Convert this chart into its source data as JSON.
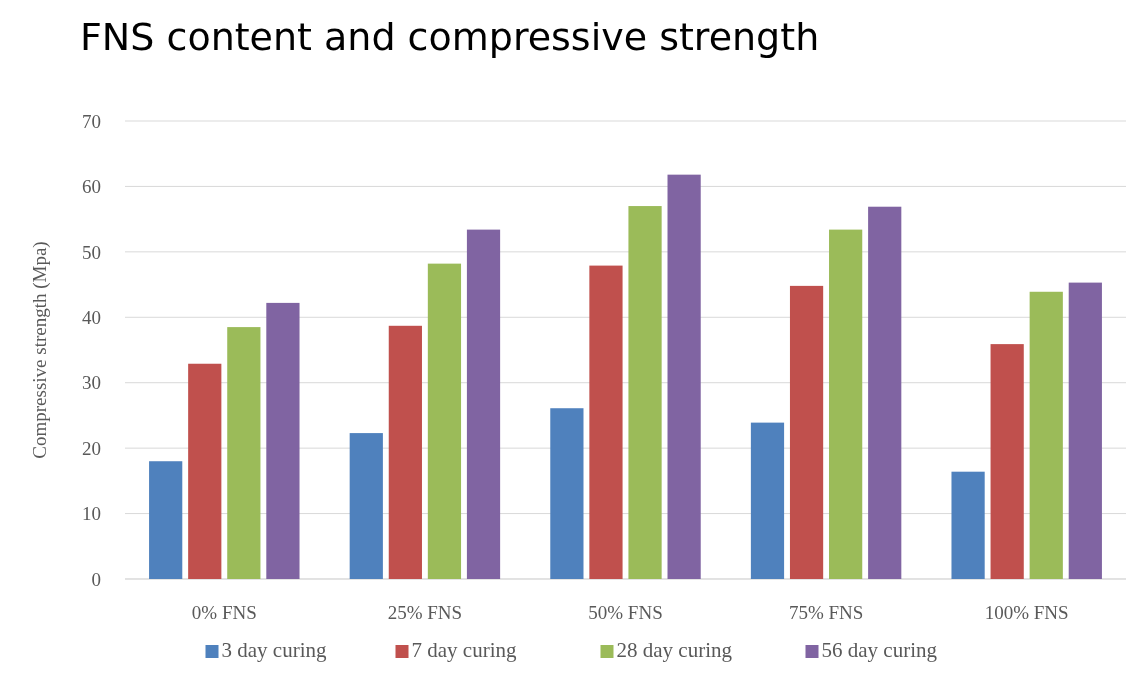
{
  "chart_data": {
    "type": "bar",
    "title": "FNS content and compressive strength",
    "ylabel": "Compressive strength (Mpa)",
    "categories": [
      "0% FNS",
      "25% FNS",
      "50% FNS",
      "75% FNS",
      "100% FNS"
    ],
    "series": [
      {
        "name": "3 day curing",
        "color": "#4f81bd",
        "values": [
          18.0,
          22.3,
          26.1,
          23.9,
          16.4
        ]
      },
      {
        "name": "7 day curing",
        "color": "#c0504d",
        "values": [
          32.9,
          38.7,
          47.9,
          44.8,
          35.9
        ]
      },
      {
        "name": "28 day curing",
        "color": "#9bbb59",
        "values": [
          38.5,
          48.2,
          57.0,
          53.4,
          43.9
        ]
      },
      {
        "name": "56 day curing",
        "color": "#8064a2",
        "values": [
          42.2,
          53.4,
          61.8,
          56.9,
          45.3
        ]
      }
    ],
    "ylim": [
      0,
      70
    ],
    "yticks": [
      0,
      10,
      20,
      30,
      40,
      50,
      60,
      70
    ],
    "grid": "y",
    "legend": "bottom"
  }
}
